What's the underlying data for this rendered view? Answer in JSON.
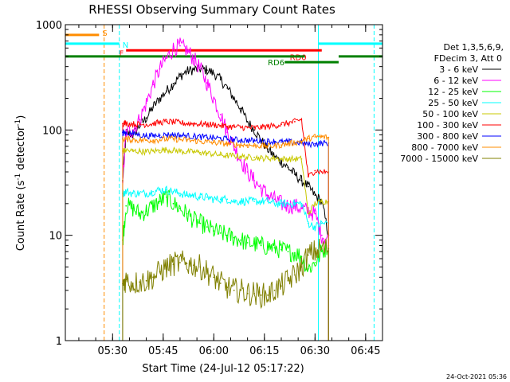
{
  "chart_data": {
    "type": "line",
    "title": "RHESSI Observing Summary Count Rates",
    "xlabel": "Start Time (24-Jul-12 05:17:22)",
    "ylabel_main": "Count Rate (s",
    "ylabel_sup1": "-1",
    "ylabel_mid": " detector",
    "ylabel_sup2": "-1",
    "ylabel_end": ")",
    "y_scale": "log",
    "ylim": [
      1,
      1000
    ],
    "x_range_minutes": [
      0,
      94
    ],
    "x_ticks": [
      {
        "minute": 14,
        "label": "05:30"
      },
      {
        "minute": 29,
        "label": "05:45"
      },
      {
        "minute": 44,
        "label": "06:00"
      },
      {
        "minute": 59,
        "label": "06:15"
      },
      {
        "minute": 74,
        "label": "06:30"
      },
      {
        "minute": 89,
        "label": "06:45"
      }
    ],
    "y_ticks": [
      {
        "value": 1,
        "label": "1"
      },
      {
        "value": 10,
        "label": "10"
      },
      {
        "value": 100,
        "label": "100"
      },
      {
        "value": 1000,
        "label": "1000"
      }
    ],
    "legend_header": [
      "Det 1,3,5,6,9,",
      "FDecim 3, Att 0"
    ],
    "legend_placement": "right",
    "series": [
      {
        "name": "3 - 6 keV",
        "color": "#000000",
        "x": [
          17,
          18,
          20,
          22,
          24,
          26,
          28,
          30,
          32,
          34,
          36,
          38,
          40,
          42,
          44,
          46,
          48,
          50,
          52,
          54,
          56,
          58,
          60,
          62,
          64,
          66,
          68,
          70,
          72,
          74,
          76,
          78
        ],
        "y": [
          33,
          95,
          90,
          110,
          130,
          165,
          200,
          235,
          275,
          325,
          360,
          375,
          380,
          370,
          345,
          300,
          250,
          200,
          160,
          120,
          100,
          80,
          66,
          56,
          50,
          44,
          38,
          33,
          29,
          24,
          21,
          10
        ]
      },
      {
        "name": "6 - 12 keV",
        "color": "#ff00ff",
        "x": [
          17,
          18,
          20,
          22,
          24,
          26,
          28,
          30,
          32,
          34,
          36,
          38,
          40,
          42,
          44,
          46,
          48,
          50,
          52,
          54,
          56,
          58,
          60,
          62,
          64,
          66,
          68,
          70,
          72,
          74,
          76,
          78
        ],
        "y": [
          32,
          95,
          100,
          125,
          180,
          270,
          380,
          480,
          590,
          630,
          570,
          480,
          380,
          280,
          200,
          140,
          95,
          70,
          52,
          40,
          33,
          28,
          24,
          22,
          20,
          19,
          19,
          18,
          17,
          16,
          10,
          9
        ]
      },
      {
        "name": "12 - 25 keV",
        "color": "#00ff00",
        "x": [
          17,
          18,
          20,
          22,
          24,
          26,
          28,
          30,
          32,
          34,
          36,
          38,
          40,
          42,
          44,
          46,
          48,
          50,
          52,
          54,
          56,
          58,
          60,
          62,
          64,
          66,
          68,
          70,
          72,
          74,
          76,
          78
        ],
        "y": [
          9,
          19,
          18,
          16,
          17,
          19,
          21,
          23,
          20,
          18,
          16,
          14,
          13,
          12,
          11,
          10.5,
          10,
          9.5,
          9,
          8.5,
          8.3,
          8,
          7.8,
          7.6,
          7.3,
          7,
          6.8,
          6.3,
          4.8,
          5.5,
          7,
          8
        ]
      },
      {
        "name": "25 - 50 keV",
        "color": "#00ffff",
        "x": [
          17,
          18,
          20,
          22,
          24,
          26,
          28,
          30,
          32,
          34,
          36,
          38,
          40,
          42,
          44,
          46,
          48,
          50,
          52,
          54,
          56,
          58,
          60,
          62,
          64,
          66,
          68,
          70,
          72,
          74,
          76,
          78
        ],
        "y": [
          25,
          26,
          25,
          25,
          25,
          26,
          27,
          27,
          26,
          25,
          24,
          24,
          23,
          23,
          22,
          22,
          22,
          21,
          21,
          21,
          21,
          21,
          21,
          20,
          20,
          20,
          20,
          20,
          13,
          12,
          13,
          13
        ]
      },
      {
        "name": "50 - 100 keV",
        "color": "#c8c800",
        "x": [
          17,
          18,
          20,
          22,
          24,
          26,
          28,
          30,
          32,
          34,
          36,
          38,
          40,
          42,
          44,
          46,
          48,
          50,
          52,
          54,
          56,
          58,
          60,
          62,
          64,
          66,
          68,
          70,
          72,
          74,
          76,
          78
        ],
        "y": [
          63,
          64,
          63,
          63,
          62,
          63,
          64,
          65,
          64,
          63,
          62,
          62,
          61,
          60,
          59,
          58,
          57,
          57,
          56,
          55,
          55,
          54,
          54,
          54,
          53,
          53,
          53,
          53,
          16,
          20,
          21,
          21
        ]
      },
      {
        "name": "100 - 300 keV",
        "color": "#ff0000",
        "x": [
          17,
          18,
          20,
          22,
          24,
          26,
          28,
          30,
          32,
          34,
          36,
          38,
          40,
          42,
          44,
          46,
          48,
          50,
          52,
          54,
          56,
          58,
          60,
          62,
          64,
          66,
          68,
          70,
          72,
          74,
          76,
          78
        ],
        "y": [
          115,
          116,
          114,
          113,
          113,
          115,
          118,
          120,
          119,
          117,
          115,
          115,
          114,
          113,
          112,
          110,
          108,
          107,
          106,
          105,
          105,
          106,
          108,
          110,
          113,
          116,
          120,
          126,
          36,
          41,
          40,
          40
        ]
      },
      {
        "name": "300 - 800 keV",
        "color": "#0000ff",
        "x": [
          17,
          18,
          20,
          22,
          24,
          26,
          28,
          30,
          32,
          34,
          36,
          38,
          40,
          42,
          44,
          46,
          48,
          50,
          52,
          54,
          56,
          58,
          60,
          62,
          64,
          66,
          68,
          70,
          72,
          74,
          76,
          78
        ],
        "y": [
          95,
          94,
          92,
          90,
          88,
          88,
          89,
          90,
          90,
          89,
          88,
          87,
          86,
          85,
          84,
          83,
          82,
          81,
          80,
          80,
          79,
          79,
          78,
          78,
          77,
          77,
          76,
          76,
          73,
          74,
          75,
          75
        ]
      },
      {
        "name": "800 - 7000 keV",
        "color": "#ff8c00",
        "x": [
          17,
          18,
          20,
          22,
          24,
          26,
          28,
          30,
          32,
          34,
          36,
          38,
          40,
          42,
          44,
          46,
          48,
          50,
          52,
          54,
          56,
          58,
          60,
          62,
          64,
          66,
          68,
          70,
          72,
          74,
          76,
          78
        ],
        "y": [
          82,
          82,
          81,
          80,
          80,
          80,
          81,
          82,
          82,
          81,
          80,
          79,
          78,
          77,
          76,
          75,
          74,
          73,
          72,
          72,
          71,
          71,
          70,
          71,
          72,
          74,
          76,
          78,
          83,
          86,
          86,
          85
        ]
      },
      {
        "name": "7000 - 15000 keV",
        "color": "#808000",
        "x": [
          17,
          18,
          20,
          22,
          24,
          26,
          28,
          30,
          32,
          34,
          36,
          38,
          40,
          42,
          44,
          46,
          48,
          50,
          52,
          54,
          56,
          58,
          60,
          62,
          64,
          66,
          68,
          70,
          72,
          74,
          76,
          78
        ],
        "y": [
          3.5,
          3.8,
          3.5,
          3.6,
          3.7,
          4,
          4.5,
          5,
          5.3,
          5.5,
          5.4,
          5.2,
          5,
          4.5,
          4,
          3.5,
          3.2,
          3,
          3,
          2.8,
          2.8,
          2.7,
          2.7,
          3,
          3.3,
          3.7,
          4.2,
          5,
          6.5,
          7,
          7.5,
          7.5
        ]
      }
    ],
    "flag_bars": [
      {
        "label": "S",
        "color": "#ff8c00",
        "value": 800,
        "segments": [
          [
            0,
            10
          ]
        ]
      },
      {
        "label": "N",
        "color": "#00ffff",
        "value": 660,
        "segments": [
          [
            0,
            16
          ],
          [
            75,
            94
          ]
        ]
      },
      {
        "label": "F",
        "color": "#ff0000",
        "value": 570,
        "segments": [
          [
            18,
            76
          ]
        ]
      },
      {
        "label": "RD0",
        "color": "#ff0000",
        "value": 570,
        "segments": []
      },
      {
        "label": "",
        "color": "#008000",
        "value": 500,
        "segments": [
          [
            0,
            71
          ],
          [
            81,
            94
          ]
        ]
      },
      {
        "label": "RD6",
        "color": "#008000",
        "value": 440,
        "segments": [
          [
            65,
            81
          ]
        ]
      }
    ],
    "vertical_markers": [
      {
        "minute": 11.5,
        "color": "#ff8c00",
        "style": "dashed"
      },
      {
        "minute": 16,
        "color": "#00ffff",
        "style": "dashed"
      },
      {
        "minute": 75,
        "color": "#00ffff",
        "style": "solid"
      },
      {
        "minute": 91.5,
        "color": "#00ffff",
        "style": "dashed"
      }
    ],
    "footer_date": "24-Oct-2021 05:36"
  }
}
